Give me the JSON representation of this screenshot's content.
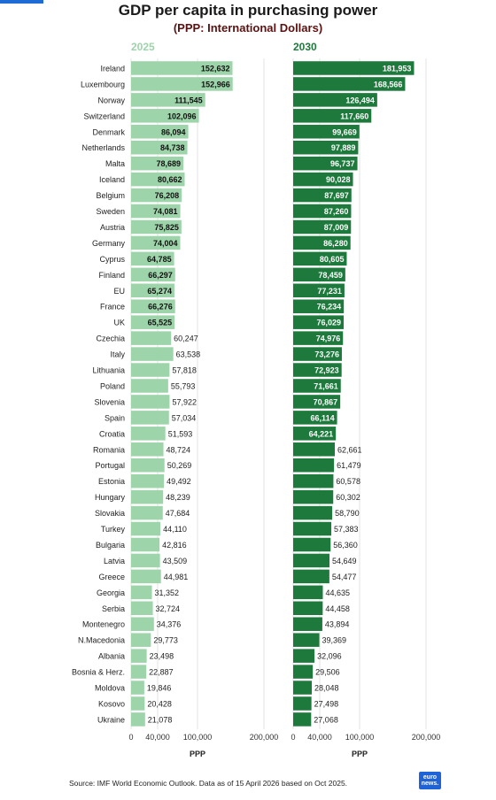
{
  "chart_data": {
    "type": "bar",
    "title": "GDP per capita in purchasing power",
    "subtitle": "(PPP: International Dollars)",
    "categories": [
      "Ireland",
      "Luxembourg",
      "Norway",
      "Switzerland",
      "Denmark",
      "Netherlands",
      "Malta",
      "Iceland",
      "Belgium",
      "Sweden",
      "Austria",
      "Germany",
      "Cyprus",
      "Finland",
      "EU",
      "France",
      "UK",
      "Czechia",
      "Italy",
      "Lithuania",
      "Poland",
      "Slovenia",
      "Spain",
      "Croatia",
      "Romania",
      "Portugal",
      "Estonia",
      "Hungary",
      "Slovakia",
      "Turkey",
      "Bulgaria",
      "Latvia",
      "Greece",
      "Georgia",
      "Serbia",
      "Montenegro",
      "N.Macedonia",
      "Albania",
      "Bosnia & Herz.",
      "Moldova",
      "Kosovo",
      "Ukraine"
    ],
    "series": [
      {
        "name": "2025",
        "color": "#9dd4aa",
        "values": [
          152632,
          152966,
          111545,
          102096,
          86094,
          84738,
          78689,
          80662,
          76208,
          74081,
          75825,
          74004,
          64785,
          66297,
          65274,
          66276,
          65525,
          60247,
          63538,
          57818,
          55793,
          57922,
          57034,
          51593,
          48724,
          50269,
          49492,
          48239,
          47684,
          44110,
          42816,
          43509,
          44981,
          31352,
          32724,
          34376,
          29773,
          23498,
          22887,
          19846,
          20428,
          21078
        ],
        "labels": [
          "152,632",
          "152,966",
          "111,545",
          "102,096",
          "86,094",
          "84,738",
          "78,689",
          "80,662",
          "76,208",
          "74,081",
          "75,825",
          "74,004",
          "64,785",
          "66,297",
          "65,274",
          "66,276",
          "65,525",
          "60,247",
          "63,538",
          "57,818",
          "55,793",
          "57,922",
          "57,034",
          "51,593",
          "48,724",
          "50,269",
          "49,492",
          "48,239",
          "47,684",
          "44,110",
          "42,816",
          "43,509",
          "44,981",
          "31,352",
          "32,724",
          "34,376",
          "29,773",
          "23,498",
          "22,887",
          "19,846",
          "20,428",
          "21,078"
        ]
      },
      {
        "name": "2030",
        "color": "#1e7a3c",
        "values": [
          181953,
          168566,
          126494,
          117660,
          99669,
          97889,
          96737,
          90028,
          87697,
          87260,
          87009,
          86280,
          80605,
          78459,
          77231,
          76234,
          76029,
          74976,
          73276,
          72923,
          71661,
          70867,
          66114,
          64221,
          62661,
          61479,
          60578,
          60302,
          58790,
          57383,
          56360,
          54649,
          54477,
          44635,
          44458,
          43894,
          39369,
          32096,
          29506,
          28048,
          27498,
          27068
        ],
        "labels": [
          "181,953",
          "168,566",
          "126,494",
          "117,660",
          "99,669",
          "97,889",
          "96,737",
          "90,028",
          "87,697",
          "87,260",
          "87,009",
          "86,280",
          "80,605",
          "78,459",
          "77,231",
          "76,234",
          "76,029",
          "74,976",
          "73,276",
          "72,923",
          "71,661",
          "70,867",
          "66,114",
          "64,221",
          "62,661",
          "61,479",
          "60,578",
          "60,302",
          "58,790",
          "57,383",
          "56,360",
          "54,649",
          "54,477",
          "44,635",
          "44,458",
          "43,894",
          "39,369",
          "32,096",
          "29,506",
          "28,048",
          "27,498",
          "27,068"
        ]
      }
    ],
    "xlim": [
      0,
      200000
    ],
    "xticks": [
      0,
      40000,
      100000,
      200000
    ],
    "xtick_labels": [
      "0",
      "40,000",
      "100,000",
      "200,000"
    ],
    "xlabel": "PPP",
    "label_color_inside": "#111111",
    "label_color_inside_dark": "#ffffff",
    "grid": true
  },
  "footer": {
    "source": "Source: IMF World Economic Outlook. Data as of 15 April 2026 based on Oct 2025.",
    "logo_text": "euro news."
  }
}
